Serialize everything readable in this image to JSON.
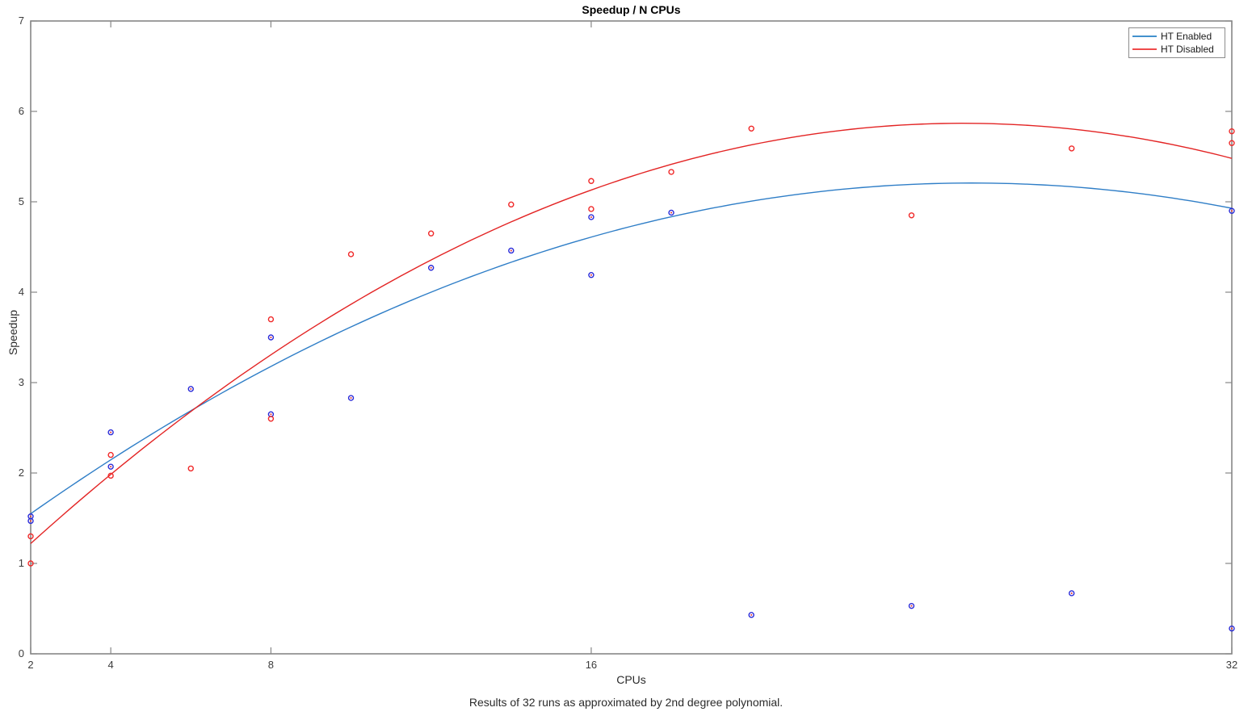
{
  "title": "Speedup / N CPUs",
  "xlabel": "CPUs",
  "ylabel": "Speedup",
  "caption": "Results of 32 runs as approximated by 2nd degree polynomial.",
  "legend": {
    "position": "top-right",
    "items": [
      {
        "label": "HT Enabled",
        "color": "#4391cd"
      },
      {
        "label": "HT Disabled",
        "color": "#ef4a4a"
      }
    ]
  },
  "colors": {
    "background": "#ffffff",
    "axis_frame": "#878787",
    "tick_text": "#3c3c3c",
    "blue_line": "#2f7ec7",
    "blue_marker_edge": "#2a2ad8",
    "blue_marker_center": "#e03030",
    "red_line": "#e32424",
    "red_marker_edge": "#f02828"
  },
  "chart_data": {
    "type": "scatter",
    "title": "Speedup / N CPUs",
    "xlabel": "CPUs",
    "ylabel": "Speedup",
    "caption": "Results of 32 runs as approximated by 2nd degree polynomial.",
    "x_scale": "linear",
    "xlim": [
      2,
      32
    ],
    "ylim": [
      0,
      7
    ],
    "x_ticks": [
      2,
      4,
      8,
      16,
      32
    ],
    "y_ticks": [
      0,
      1,
      2,
      3,
      4,
      5,
      6,
      7
    ],
    "grid": false,
    "legend_position": "top-right",
    "series": [
      {
        "name": "HT Enabled",
        "line_color": "#2f7ec7",
        "marker": "open-circle-blue-with-red-center",
        "points": [
          [
            2,
            1.52
          ],
          [
            2,
            1.47
          ],
          [
            4,
            2.45
          ],
          [
            4,
            2.07
          ],
          [
            6,
            2.93
          ],
          [
            8,
            3.5
          ],
          [
            8,
            2.65
          ],
          [
            10,
            2.83
          ],
          [
            12,
            4.27
          ],
          [
            14,
            4.46
          ],
          [
            16,
            4.83
          ],
          [
            16,
            4.19
          ],
          [
            18,
            4.88
          ],
          [
            20,
            0.43
          ],
          [
            24,
            0.53
          ],
          [
            28,
            0.67
          ],
          [
            32,
            4.9
          ],
          [
            32,
            0.28
          ]
        ],
        "fit": {
          "type": "poly2",
          "a": -0.00662,
          "b": 0.3377,
          "c": 0.901
        }
      },
      {
        "name": "HT Disabled",
        "line_color": "#e32424",
        "marker": "open-circle-red",
        "points": [
          [
            2,
            1.3
          ],
          [
            2,
            1.0
          ],
          [
            4,
            2.2
          ],
          [
            4,
            1.97
          ],
          [
            6,
            2.05
          ],
          [
            8,
            3.7
          ],
          [
            8,
            2.6
          ],
          [
            10,
            4.42
          ],
          [
            12,
            4.65
          ],
          [
            14,
            4.97
          ],
          [
            16,
            5.23
          ],
          [
            16,
            4.92
          ],
          [
            18,
            5.33
          ],
          [
            20,
            5.81
          ],
          [
            24,
            4.85
          ],
          [
            28,
            5.59
          ],
          [
            32,
            5.78
          ],
          [
            32,
            5.65
          ]
        ],
        "fit": {
          "type": "poly2",
          "a": -0.00858,
          "b": 0.43374,
          "c": 0.38685
        }
      }
    ]
  }
}
